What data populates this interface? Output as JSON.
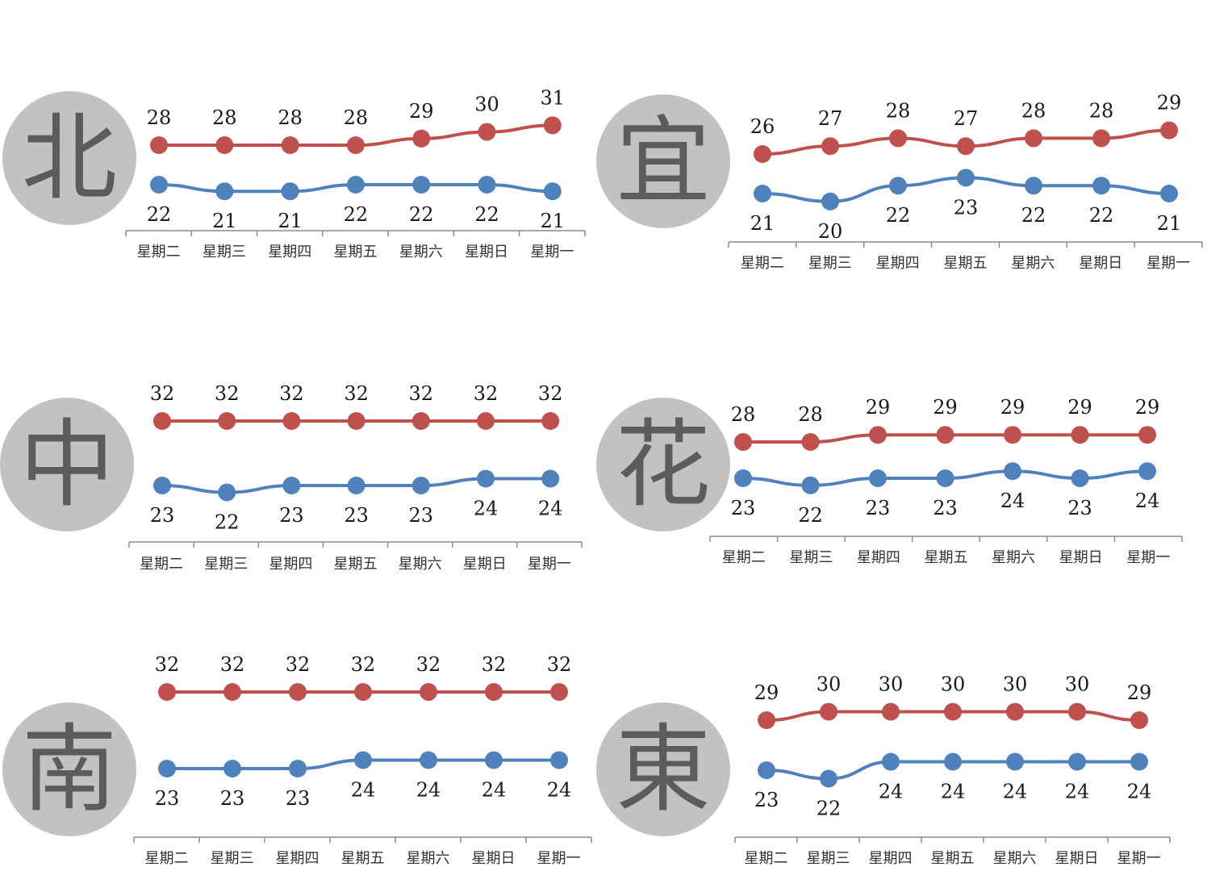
{
  "colors": {
    "high": "#c0504d",
    "low": "#4f81bd",
    "axis": "#8c8c8c",
    "circle": "#c2c2c2",
    "circle_text": "#5c5c5c"
  },
  "chart_data": [
    {
      "type": "line",
      "region": "北",
      "categories": [
        "星期二",
        "星期三",
        "星期四",
        "星期五",
        "星期六",
        "星期日",
        "星期一"
      ],
      "series": [
        {
          "values": [
            28,
            28,
            28,
            28,
            29,
            30,
            31
          ]
        },
        {
          "values": [
            22,
            21,
            21,
            22,
            22,
            22,
            21
          ]
        }
      ]
    },
    {
      "type": "line",
      "region": "宜",
      "categories": [
        "星期二",
        "星期三",
        "星期四",
        "星期五",
        "星期六",
        "星期日",
        "星期一"
      ],
      "series": [
        {
          "values": [
            26,
            27,
            28,
            27,
            28,
            28,
            29
          ]
        },
        {
          "values": [
            21,
            20,
            22,
            23,
            22,
            22,
            21
          ]
        }
      ]
    },
    {
      "type": "line",
      "region": "中",
      "categories": [
        "星期二",
        "星期三",
        "星期四",
        "星期五",
        "星期六",
        "星期日",
        "星期一"
      ],
      "series": [
        {
          "values": [
            32,
            32,
            32,
            32,
            32,
            32,
            32
          ]
        },
        {
          "values": [
            23,
            22,
            23,
            23,
            23,
            24,
            24
          ]
        }
      ]
    },
    {
      "type": "line",
      "region": "花",
      "categories": [
        "星期二",
        "星期三",
        "星期四",
        "星期五",
        "星期六",
        "星期日",
        "星期一"
      ],
      "series": [
        {
          "values": [
            28,
            28,
            29,
            29,
            29,
            29,
            29
          ]
        },
        {
          "values": [
            23,
            22,
            23,
            23,
            24,
            23,
            24
          ]
        }
      ]
    },
    {
      "type": "line",
      "region": "南",
      "categories": [
        "星期二",
        "星期三",
        "星期四",
        "星期五",
        "星期六",
        "星期日",
        "星期一"
      ],
      "series": [
        {
          "values": [
            32,
            32,
            32,
            32,
            32,
            32,
            32
          ]
        },
        {
          "values": [
            23,
            23,
            23,
            24,
            24,
            24,
            24
          ]
        }
      ]
    },
    {
      "type": "line",
      "region": "東",
      "categories": [
        "星期二",
        "星期三",
        "星期四",
        "星期五",
        "星期六",
        "星期日",
        "星期一"
      ],
      "series": [
        {
          "values": [
            29,
            30,
            30,
            30,
            30,
            30,
            29
          ]
        },
        {
          "values": [
            23,
            22,
            24,
            24,
            24,
            24,
            24
          ]
        }
      ]
    }
  ]
}
